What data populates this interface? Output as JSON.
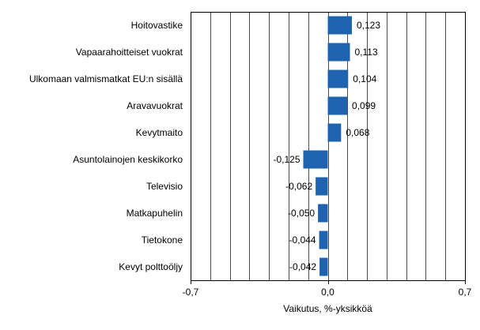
{
  "chart_data": {
    "type": "bar",
    "orientation": "horizontal",
    "categories": [
      "Hoitovastike",
      "Vapaarahoitteiset vuokrat",
      "Ulkomaan valmismatkat  EU:n sisällä",
      "Aravavuokrat",
      "Kevytmaito",
      "Asuntolainojen keskikorko",
      "Televisio",
      "Matkapuhelin",
      "Tietokone",
      "Kevyt polttoöljy"
    ],
    "values": [
      0.123,
      0.113,
      0.104,
      0.099,
      0.068,
      -0.125,
      -0.062,
      -0.05,
      -0.044,
      -0.042
    ],
    "value_labels": [
      "0,123",
      "0,113",
      "0,104",
      "0,099",
      "0,068",
      "-0,125",
      "-0,062",
      "-0,050",
      "-0,044",
      "-0,042"
    ],
    "xlim": [
      -0.7,
      0.7
    ],
    "xticks": [
      -0.7,
      0.0,
      0.7
    ],
    "xtick_labels": [
      "-0,7",
      "0,0",
      "0,7"
    ],
    "gridline_step": 0.1,
    "grid": true,
    "xlabel": "Vaikutus, %-yksikköä",
    "title": "",
    "ylabel": "",
    "bar_color": "#1f63b0",
    "grid_color": "#000000"
  }
}
